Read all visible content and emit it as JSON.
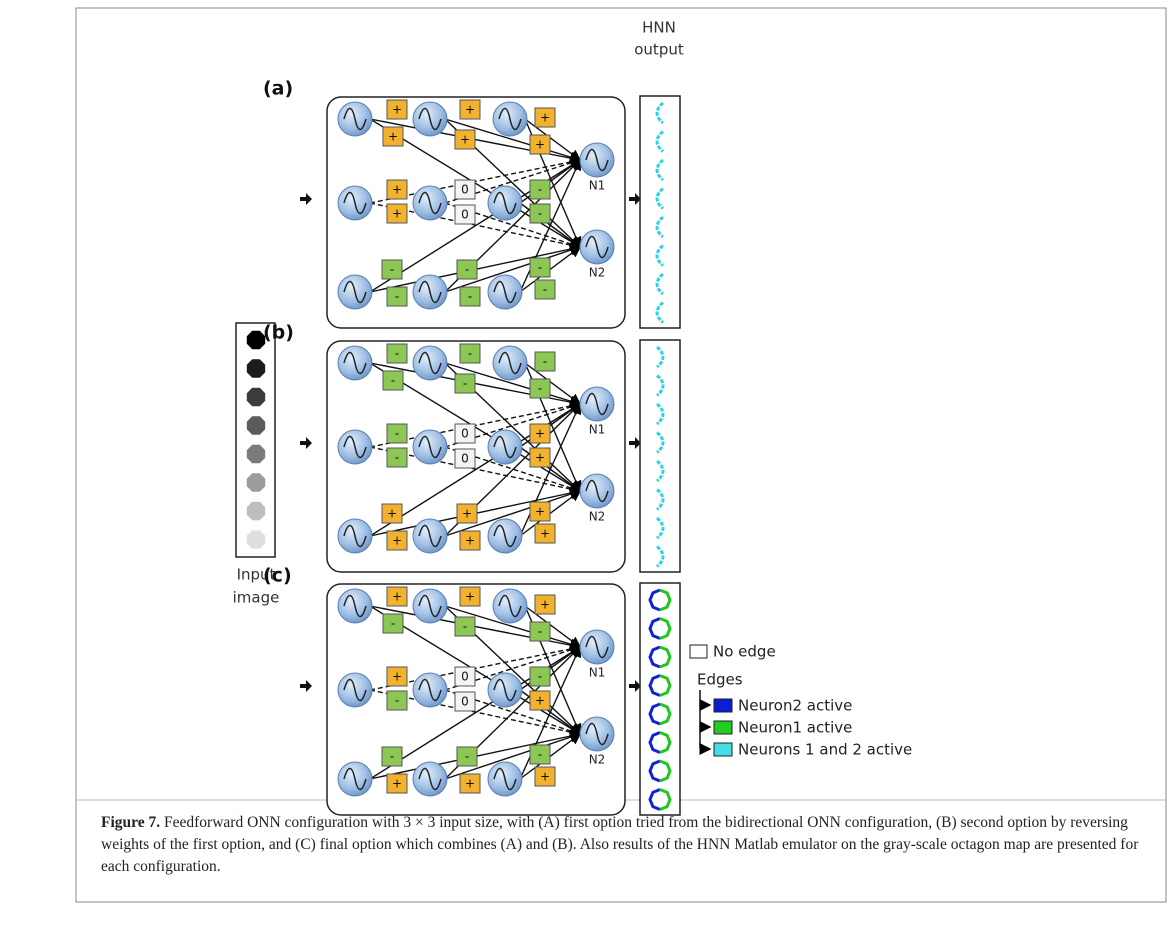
{
  "figure": {
    "output_header": [
      "HNN",
      "output"
    ],
    "input_image": {
      "label_lines": [
        "Input",
        "image"
      ],
      "shades": [
        "#000000",
        "#1c1c1c",
        "#3b3b3b",
        "#5c5c5c",
        "#7b7b7b",
        "#9c9c9c",
        "#bebebe",
        "#dedede"
      ]
    },
    "panels": [
      {
        "label": "(a)",
        "neurons": [
          "N1",
          "N2"
        ],
        "output_colors": [
          "#2fd3e6"
        ],
        "weights": [
          {
            "label": "+",
            "color": "#f2b230"
          },
          {
            "label": "+",
            "color": "#f2b230"
          },
          {
            "label": "+",
            "color": "#f2b230"
          },
          {
            "label": "+",
            "color": "#f2b230"
          },
          {
            "label": "+",
            "color": "#f2b230"
          },
          {
            "label": "+",
            "color": "#f2b230"
          },
          {
            "label": "+",
            "color": "#f2b230"
          },
          {
            "label": "+",
            "color": "#f2b230"
          },
          {
            "label": "0",
            "color": "#f4f4f4"
          },
          {
            "label": "0",
            "color": "#f4f4f4"
          },
          {
            "label": "-",
            "color": "#8cc655"
          },
          {
            "label": "-",
            "color": "#8cc655"
          },
          {
            "label": "-",
            "color": "#8cc655"
          },
          {
            "label": "-",
            "color": "#8cc655"
          },
          {
            "label": "-",
            "color": "#8cc655"
          },
          {
            "label": "-",
            "color": "#8cc655"
          },
          {
            "label": "-",
            "color": "#8cc655"
          },
          {
            "label": "-",
            "color": "#8cc655"
          }
        ]
      },
      {
        "label": "(b)",
        "neurons": [
          "N1",
          "N2"
        ],
        "output_colors": [
          "#2fd3e6"
        ],
        "weights": [
          {
            "label": "-",
            "color": "#8cc655"
          },
          {
            "label": "-",
            "color": "#8cc655"
          },
          {
            "label": "-",
            "color": "#8cc655"
          },
          {
            "label": "-",
            "color": "#8cc655"
          },
          {
            "label": "-",
            "color": "#8cc655"
          },
          {
            "label": "-",
            "color": "#8cc655"
          },
          {
            "label": "-",
            "color": "#8cc655"
          },
          {
            "label": "-",
            "color": "#8cc655"
          },
          {
            "label": "0",
            "color": "#f4f4f4"
          },
          {
            "label": "0",
            "color": "#f4f4f4"
          },
          {
            "label": "+",
            "color": "#f2b230"
          },
          {
            "label": "+",
            "color": "#f2b230"
          },
          {
            "label": "+",
            "color": "#f2b230"
          },
          {
            "label": "+",
            "color": "#f2b230"
          },
          {
            "label": "+",
            "color": "#f2b230"
          },
          {
            "label": "+",
            "color": "#f2b230"
          },
          {
            "label": "+",
            "color": "#f2b230"
          },
          {
            "label": "+",
            "color": "#f2b230"
          }
        ]
      },
      {
        "label": "(c)",
        "neurons": [
          "N1",
          "N2"
        ],
        "output_colors": [
          "#1022d8",
          "#1ec81e"
        ],
        "weights": [
          {
            "label": "+",
            "color": "#f2b230"
          },
          {
            "label": "-",
            "color": "#8cc655"
          },
          {
            "label": "+",
            "color": "#f2b230"
          },
          {
            "label": "-",
            "color": "#8cc655"
          },
          {
            "label": "+",
            "color": "#f2b230"
          },
          {
            "label": "-",
            "color": "#8cc655"
          },
          {
            "label": "+",
            "color": "#f2b230"
          },
          {
            "label": "-",
            "color": "#8cc655"
          },
          {
            "label": "0",
            "color": "#f4f4f4"
          },
          {
            "label": "0",
            "color": "#f4f4f4"
          },
          {
            "label": "-",
            "color": "#8cc655"
          },
          {
            "label": "+",
            "color": "#f2b230"
          },
          {
            "label": "-",
            "color": "#8cc655"
          },
          {
            "label": "+",
            "color": "#f2b230"
          },
          {
            "label": "-",
            "color": "#8cc655"
          },
          {
            "label": "+",
            "color": "#f2b230"
          },
          {
            "label": "-",
            "color": "#8cc655"
          },
          {
            "label": "+",
            "color": "#f2b230"
          }
        ]
      }
    ],
    "legend": {
      "no_edge": "No edge",
      "edges": "Edges",
      "items": [
        {
          "label": "Neuron2 active",
          "color": "#0a1ed4"
        },
        {
          "label": "Neuron1 active",
          "color": "#22cc22"
        },
        {
          "label": "Neurons 1 and 2 active",
          "color": "#44dde8"
        }
      ]
    },
    "caption": {
      "label": "Figure 7.",
      "text": "Feedforward ONN configuration with 3 × 3 input size, with (A) first option tried from the bidirectional ONN configuration, (B) second option by reversing weights of the first option, and (C) final option which combines (A) and (B). Also results of the HNN Matlab emulator on the gray-scale octagon map are presented for each configuration."
    }
  }
}
